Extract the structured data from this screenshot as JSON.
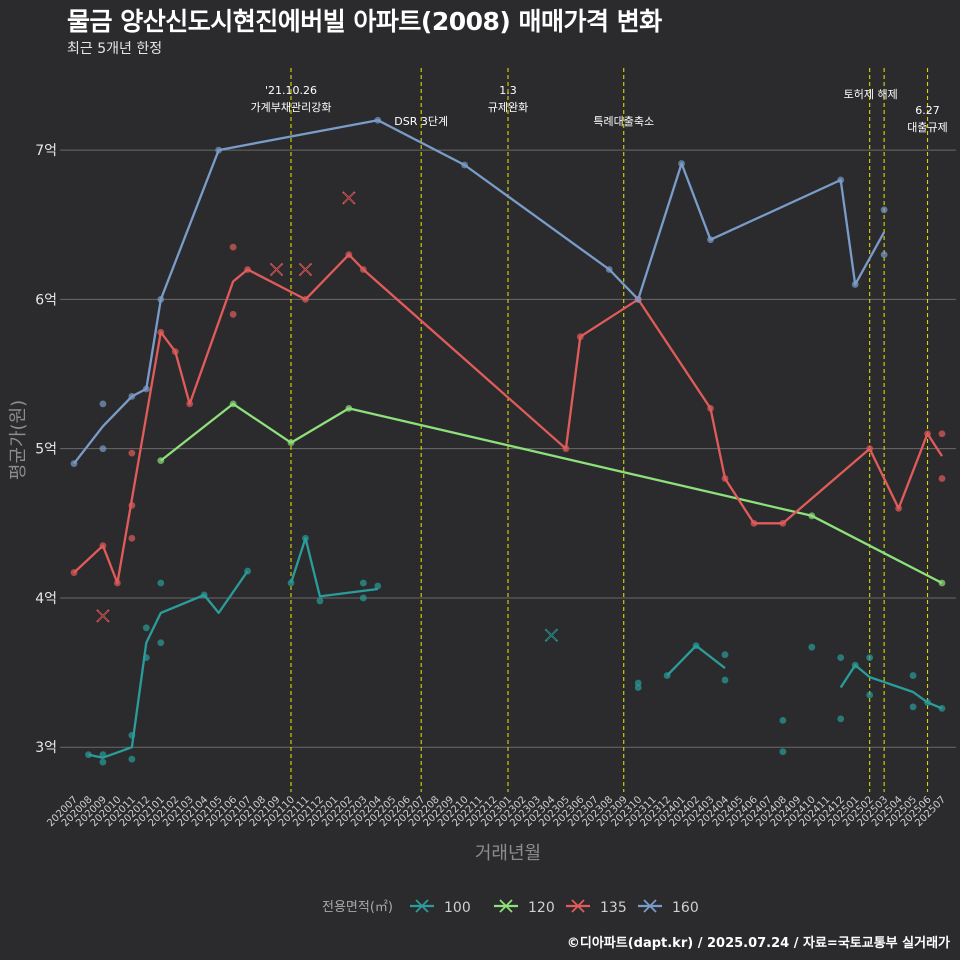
{
  "title": "물금 양산신도시현진에버빌 아파트(2008) 매매가격 변화",
  "subtitle": "최근 5개년 한정",
  "caption": "©디아파트(dapt.kr) / 2025.07.24 / 자료=국토교통부 실거래가",
  "chart_data": {
    "type": "line",
    "xlabel": "거래년월",
    "ylabel": "평균가(원)",
    "x_categories": [
      "202007",
      "202008",
      "202009",
      "202010",
      "202011",
      "202012",
      "202101",
      "202102",
      "202103",
      "202104",
      "202105",
      "202106",
      "202107",
      "202108",
      "202109",
      "202110",
      "202111",
      "202112",
      "202201",
      "202202",
      "202203",
      "202204",
      "202205",
      "202206",
      "202207",
      "202208",
      "202209",
      "202210",
      "202211",
      "202212",
      "202301",
      "202302",
      "202303",
      "202304",
      "202305",
      "202306",
      "202307",
      "202308",
      "202309",
      "202310",
      "202311",
      "202312",
      "202401",
      "202402",
      "202403",
      "202404",
      "202405",
      "202406",
      "202407",
      "202408",
      "202409",
      "202410",
      "202411",
      "202412",
      "202501",
      "202502",
      "202503",
      "202504",
      "202505",
      "202506",
      "202507"
    ],
    "y_ticks": [
      {
        "value": 3,
        "label": "3억"
      },
      {
        "value": 4,
        "label": "4억"
      },
      {
        "value": 5,
        "label": "5억"
      },
      {
        "value": 6,
        "label": "6억"
      },
      {
        "value": 7,
        "label": "7억"
      }
    ],
    "ylim": [
      2.7,
      7.55
    ],
    "legend_title": "전용면적(㎡)",
    "legend_position": "bottom",
    "series": [
      {
        "name": "100",
        "color": "#2a9d9a",
        "line_segments": [
          [
            [
              "202008",
              2.95
            ],
            [
              "202009",
              2.93
            ],
            [
              "202011",
              3.0
            ],
            [
              "202012",
              3.7
            ],
            [
              "202101",
              3.9
            ],
            [
              "202104",
              4.02
            ],
            [
              "202105",
              3.9
            ],
            [
              "202107",
              4.18
            ]
          ],
          [
            [
              "202110",
              4.1
            ],
            [
              "202111",
              4.4
            ],
            [
              "202112",
              4.01
            ],
            [
              "202204",
              4.06
            ]
          ],
          [
            [
              "202312",
              3.48
            ],
            [
              "202402",
              3.68
            ],
            [
              "202404",
              3.53
            ]
          ],
          [
            [
              "202412",
              3.4
            ],
            [
              "202501",
              3.55
            ],
            [
              "202502",
              3.47
            ],
            [
              "202505",
              3.37
            ],
            [
              "202506",
              3.3
            ],
            [
              "202507",
              3.26
            ]
          ]
        ],
        "points": [
          [
            "202008",
            2.95
          ],
          [
            "202009",
            2.95
          ],
          [
            "202009",
            2.9
          ],
          [
            "202011",
            3.08
          ],
          [
            "202011",
            2.92
          ],
          [
            "202012",
            3.8
          ],
          [
            "202012",
            3.6
          ],
          [
            "202101",
            4.1
          ],
          [
            "202101",
            3.7
          ],
          [
            "202104",
            4.02
          ],
          [
            "202107",
            4.18
          ],
          [
            "202110",
            4.1
          ],
          [
            "202111",
            4.4
          ],
          [
            "202112",
            3.98
          ],
          [
            "202203",
            4.1
          ],
          [
            "202203",
            4.0
          ],
          [
            "202204",
            4.08
          ],
          [
            "202310",
            3.43
          ],
          [
            "202310",
            3.4
          ],
          [
            "202312",
            3.48
          ],
          [
            "202402",
            3.68
          ],
          [
            "202404",
            3.62
          ],
          [
            "202404",
            3.45
          ],
          [
            "202408",
            3.18
          ],
          [
            "202408",
            2.97
          ],
          [
            "202410",
            3.67
          ],
          [
            "202412",
            3.6
          ],
          [
            "202412",
            3.19
          ],
          [
            "202501",
            3.55
          ],
          [
            "202502",
            3.6
          ],
          [
            "202502",
            3.35
          ],
          [
            "202505",
            3.48
          ],
          [
            "202505",
            3.27
          ],
          [
            "202506",
            3.3
          ],
          [
            "202507",
            3.26
          ]
        ],
        "cancelled": [
          [
            "202304",
            3.75
          ]
        ]
      },
      {
        "name": "120",
        "color": "#8de07a",
        "line_segments": [
          [
            [
              "202101",
              4.92
            ],
            [
              "202106",
              5.3
            ],
            [
              "202110",
              5.04
            ],
            [
              "202202",
              5.27
            ],
            [
              "202410",
              4.55
            ],
            [
              "202507",
              4.1
            ]
          ]
        ],
        "points": [
          [
            "202101",
            4.92
          ],
          [
            "202106",
            5.3
          ],
          [
            "202110",
            5.04
          ],
          [
            "202202",
            5.27
          ],
          [
            "202410",
            4.55
          ],
          [
            "202507",
            4.1
          ]
        ],
        "cancelled": []
      },
      {
        "name": "135",
        "color": "#e25b5b",
        "line_segments": [
          [
            [
              "202007",
              4.17
            ],
            [
              "202009",
              4.35
            ],
            [
              "202010",
              4.1
            ],
            [
              "202101",
              5.78
            ],
            [
              "202102",
              5.65
            ],
            [
              "202103",
              5.3
            ],
            [
              "202106",
              6.12
            ],
            [
              "202107",
              6.2
            ],
            [
              "202111",
              6.0
            ],
            [
              "202202",
              6.3
            ],
            [
              "202203",
              6.2
            ],
            [
              "202305",
              5.0
            ],
            [
              "202306",
              5.75
            ],
            [
              "202310",
              6.0
            ],
            [
              "202403",
              5.27
            ],
            [
              "202404",
              4.8
            ],
            [
              "202406",
              4.5
            ],
            [
              "202408",
              4.5
            ],
            [
              "202502",
              5.0
            ],
            [
              "202504",
              4.6
            ],
            [
              "202506",
              5.1
            ],
            [
              "202507",
              4.95
            ]
          ]
        ],
        "points": [
          [
            "202007",
            4.17
          ],
          [
            "202009",
            4.35
          ],
          [
            "202010",
            4.1
          ],
          [
            "202011",
            4.97
          ],
          [
            "202011",
            4.62
          ],
          [
            "202011",
            4.4
          ],
          [
            "202101",
            5.78
          ],
          [
            "202102",
            5.65
          ],
          [
            "202103",
            5.3
          ],
          [
            "202106",
            6.35
          ],
          [
            "202106",
            5.9
          ],
          [
            "202107",
            6.2
          ],
          [
            "202111",
            6.0
          ],
          [
            "202202",
            6.3
          ],
          [
            "202203",
            6.2
          ],
          [
            "202305",
            5.0
          ],
          [
            "202306",
            5.75
          ],
          [
            "202310",
            6.0
          ],
          [
            "202403",
            5.27
          ],
          [
            "202404",
            4.8
          ],
          [
            "202406",
            4.5
          ],
          [
            "202408",
            4.5
          ],
          [
            "202502",
            5.0
          ],
          [
            "202504",
            4.6
          ],
          [
            "202506",
            5.1
          ],
          [
            "202507",
            5.1
          ],
          [
            "202507",
            4.8
          ]
        ],
        "cancelled": [
          [
            "202009",
            3.88
          ],
          [
            "202109",
            6.2
          ],
          [
            "202111",
            6.2
          ],
          [
            "202202",
            6.68
          ]
        ]
      },
      {
        "name": "160",
        "color": "#7a9cc9",
        "line_segments": [
          [
            [
              "202007",
              4.9
            ],
            [
              "202009",
              5.15
            ],
            [
              "202011",
              5.35
            ],
            [
              "202012",
              5.4
            ],
            [
              "202101",
              6.0
            ],
            [
              "202105",
              7.0
            ],
            [
              "202204",
              7.2
            ],
            [
              "202210",
              6.9
            ],
            [
              "202308",
              6.2
            ],
            [
              "202310",
              6.0
            ],
            [
              "202401",
              6.91
            ],
            [
              "202403",
              6.4
            ],
            [
              "202412",
              6.8
            ],
            [
              "202501",
              6.1
            ],
            [
              "202503",
              6.45
            ]
          ]
        ],
        "points": [
          [
            "202007",
            4.9
          ],
          [
            "202009",
            5.3
          ],
          [
            "202009",
            5.0
          ],
          [
            "202011",
            5.35
          ],
          [
            "202012",
            5.4
          ],
          [
            "202101",
            6.0
          ],
          [
            "202105",
            7.0
          ],
          [
            "202204",
            7.2
          ],
          [
            "202210",
            6.9
          ],
          [
            "202308",
            6.2
          ],
          [
            "202310",
            6.0
          ],
          [
            "202401",
            6.91
          ],
          [
            "202403",
            6.4
          ],
          [
            "202412",
            6.8
          ],
          [
            "202501",
            6.1
          ],
          [
            "202503",
            6.6
          ],
          [
            "202503",
            6.3
          ]
        ],
        "cancelled": []
      }
    ],
    "annotations": [
      {
        "x": "202110",
        "lines": [
          "'21.10.26",
          "가계부채관리강화"
        ],
        "row": 0
      },
      {
        "x": "202207",
        "lines": [
          "DSR 3단계"
        ],
        "row": 2
      },
      {
        "x": "202301",
        "lines": [
          "1.3",
          "규제완화"
        ],
        "row": 0
      },
      {
        "x": "202309",
        "lines": [
          "특례대출축소"
        ],
        "row": 2
      },
      {
        "x": "202502",
        "lines": [
          "토허제 해제"
        ],
        "row": 1
      },
      {
        "x": "202503",
        "lines": [],
        "row": 1
      },
      {
        "x": "202506",
        "lines": [
          "6.27",
          "대출규제"
        ],
        "row": 3
      }
    ]
  }
}
